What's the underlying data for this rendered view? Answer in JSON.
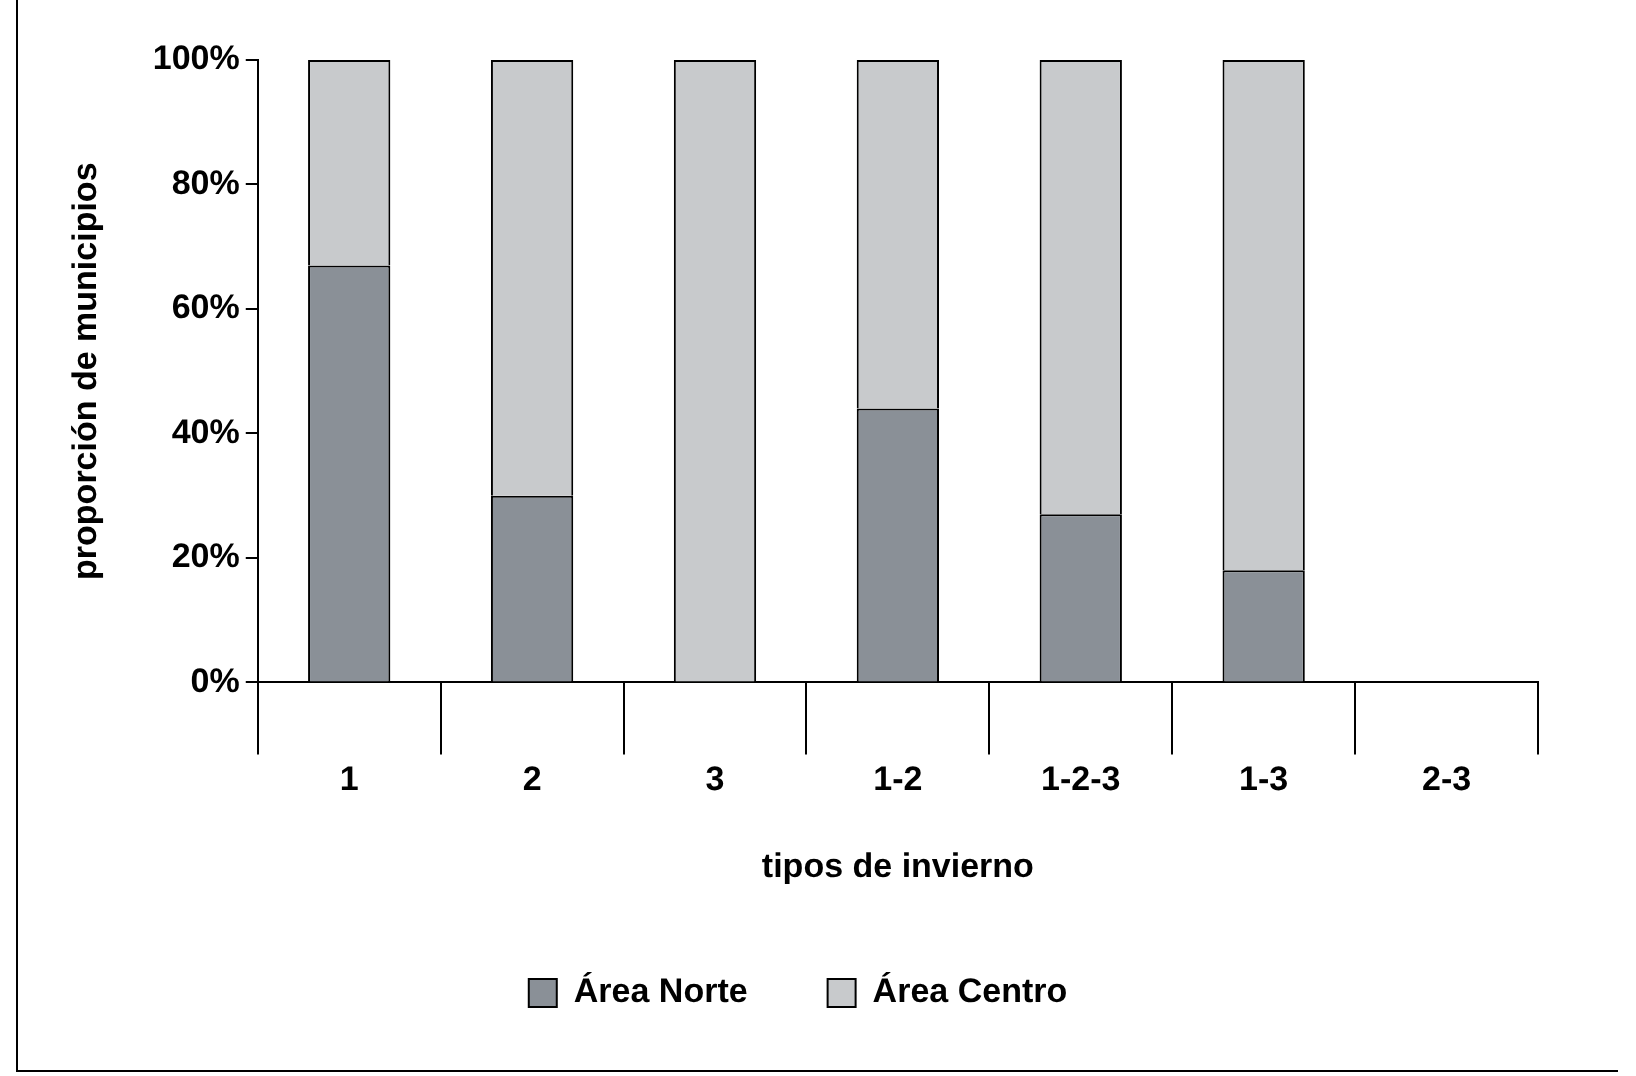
{
  "chart_data": {
    "type": "bar",
    "stacked": true,
    "xlabel": "tipos de invierno",
    "ylabel": "proporción de municipios",
    "categories": [
      "1",
      "2",
      "3",
      "1-2",
      "1-2-3",
      "1-3",
      "2-3"
    ],
    "series": [
      {
        "name": "Área Norte",
        "color": "#8a9097",
        "values": [
          67,
          30,
          0,
          44,
          27,
          18,
          0
        ]
      },
      {
        "name": "Área Centro",
        "color": "#c8cacc",
        "values": [
          33,
          70,
          100,
          56,
          73,
          82,
          0
        ]
      }
    ],
    "ylim": [
      0,
      100
    ],
    "yticks": [
      {
        "value": 0,
        "label": "0%"
      },
      {
        "value": 20,
        "label": "20%"
      },
      {
        "value": 40,
        "label": "40%"
      },
      {
        "value": 60,
        "label": "60%"
      },
      {
        "value": 80,
        "label": "80%"
      },
      {
        "value": 100,
        "label": "100%"
      }
    ],
    "grid": false,
    "legend": "bottom"
  }
}
